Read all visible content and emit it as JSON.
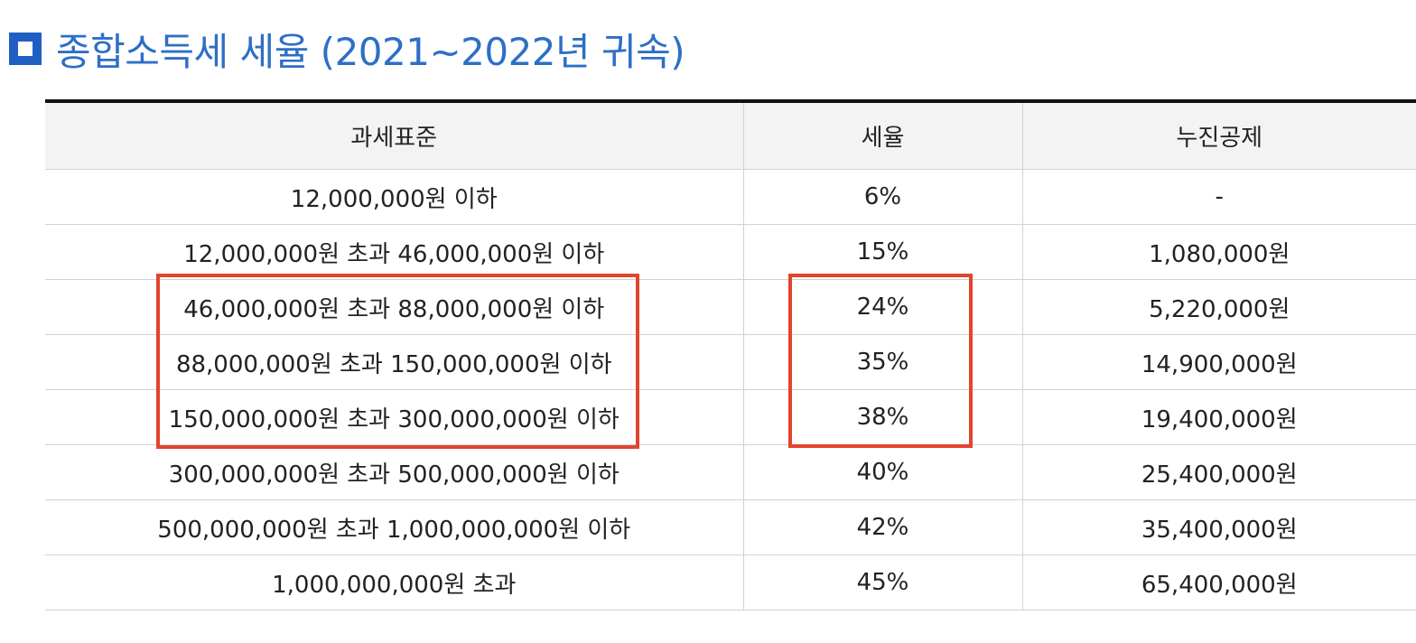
{
  "title": "종합소득세 세율 (2021~2022년 귀속)",
  "title_icon": "square-bullet-icon",
  "colors": {
    "title": "#2d6fc6",
    "icon": "#1f5fc4",
    "highlight": "#e2452d",
    "header_bg": "#f3f3f3"
  },
  "table": {
    "headers": [
      "과세표준",
      "세율",
      "누진공제"
    ],
    "rows": [
      [
        "12,000,000원 이하",
        "6%",
        "-"
      ],
      [
        "12,000,000원 초과 46,000,000원 이하",
        "15%",
        "1,080,000원"
      ],
      [
        "46,000,000원 초과 88,000,000원 이하",
        "24%",
        "5,220,000원"
      ],
      [
        "88,000,000원 초과 150,000,000원 이하",
        "35%",
        "14,900,000원"
      ],
      [
        "150,000,000원 초과 300,000,000원 이하",
        "38%",
        "19,400,000원"
      ],
      [
        "300,000,000원 초과 500,000,000원 이하",
        "40%",
        "25,400,000원"
      ],
      [
        "500,000,000원 초과 1,000,000,000원 이하",
        "42%",
        "35,400,000원"
      ],
      [
        "1,000,000,000원 초과",
        "45%",
        "65,400,000원"
      ]
    ]
  }
}
